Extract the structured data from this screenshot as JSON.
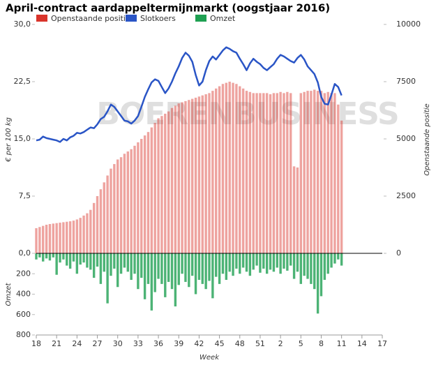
{
  "chart_data": {
    "type": "combo",
    "title": "April-contract aardappeltermijnmarkt (oogstjaar 2016)",
    "watermark": "BOERENBUSINESS",
    "ylabel": "€ per 100 kg",
    "y2label": "Openstaande positie",
    "y3label": "Omzet",
    "xlabel": "Week",
    "ylim": [
      0,
      30
    ],
    "yticks": [
      {
        "value": 0,
        "label": "0,0"
      },
      {
        "value": 7.5,
        "label": "7,5"
      },
      {
        "value": 15,
        "label": "15,0"
      },
      {
        "value": 22.5,
        "label": "22,5"
      },
      {
        "value": 30,
        "label": "30,0"
      }
    ],
    "y2lim": [
      0,
      10000
    ],
    "y2ticks": [
      0,
      2500,
      5000,
      7500,
      10000
    ],
    "y3lim": [
      0,
      800
    ],
    "y3ticks": [
      200,
      400,
      600,
      800
    ],
    "y3_inverted": true,
    "xlim": [
      18,
      69
    ],
    "xticks": [
      18,
      21,
      24,
      27,
      30,
      33,
      36,
      39,
      42,
      45,
      48,
      51,
      {
        "value": 54,
        "label": "2"
      },
      {
        "value": 57,
        "label": "5"
      },
      {
        "value": 60,
        "label": "8"
      },
      {
        "value": 63,
        "label": "11"
      },
      {
        "value": 66,
        "label": "14"
      },
      {
        "value": 69,
        "label": "17"
      }
    ],
    "x": [
      18,
      18.5,
      19,
      19.5,
      20,
      20.5,
      21,
      21.5,
      22,
      22.5,
      23,
      23.5,
      24,
      24.5,
      25,
      25.5,
      26,
      26.5,
      27,
      27.5,
      28,
      28.5,
      29,
      29.5,
      30,
      30.5,
      31,
      31.5,
      32,
      32.5,
      33,
      33.5,
      34,
      34.5,
      35,
      35.5,
      36,
      36.5,
      37,
      37.5,
      38,
      38.5,
      39,
      39.5,
      40,
      40.5,
      41,
      41.5,
      42,
      42.5,
      43,
      43.5,
      44,
      44.5,
      45,
      45.5,
      46,
      46.5,
      47,
      47.5,
      48,
      48.5,
      49,
      49.5,
      50,
      50.5,
      51,
      51.5,
      52,
      52.5,
      53,
      53.5,
      54,
      54.5,
      55,
      55.5,
      56,
      56.5,
      57,
      57.5,
      58,
      58.5,
      59,
      59.5,
      60,
      60.5,
      61,
      61.5,
      62,
      62.5,
      63
    ],
    "series": [
      {
        "name": "Openstaande positie",
        "type": "bar",
        "axis": "y2",
        "color": "#d9342b",
        "values": [
          1100,
          1150,
          1200,
          1250,
          1280,
          1300,
          1320,
          1340,
          1360,
          1380,
          1400,
          1430,
          1480,
          1550,
          1650,
          1750,
          1900,
          2200,
          2500,
          2800,
          3100,
          3400,
          3700,
          3900,
          4100,
          4200,
          4350,
          4450,
          4550,
          4700,
          4850,
          5000,
          5150,
          5300,
          5500,
          5700,
          5900,
          6000,
          6100,
          6200,
          6350,
          6450,
          6550,
          6600,
          6650,
          6700,
          6750,
          6800,
          6850,
          6900,
          6950,
          7000,
          7100,
          7200,
          7300,
          7400,
          7450,
          7500,
          7450,
          7400,
          7300,
          7200,
          7100,
          7050,
          7000,
          7000,
          7000,
          7000,
          7000,
          6950,
          7000,
          7000,
          7050,
          7000,
          7050,
          7000,
          3800,
          3750,
          7000,
          7050,
          7100,
          7100,
          7150,
          7100,
          7100,
          7000,
          7050,
          7000,
          7000,
          6500,
          5800
        ]
      },
      {
        "name": "Slotkoers",
        "type": "line",
        "axis": "y",
        "color": "#2a55c6",
        "values": [
          14.8,
          14.9,
          15.3,
          15.1,
          15.0,
          14.9,
          14.8,
          14.6,
          15.0,
          14.8,
          15.2,
          15.4,
          15.8,
          15.7,
          15.9,
          16.2,
          16.5,
          16.4,
          16.9,
          17.6,
          17.9,
          18.6,
          19.5,
          19.2,
          18.6,
          18.0,
          17.4,
          17.3,
          17.0,
          17.4,
          18.0,
          19.2,
          20.5,
          21.5,
          22.4,
          22.8,
          22.6,
          21.8,
          21.0,
          21.6,
          22.5,
          23.6,
          24.5,
          25.6,
          26.3,
          25.9,
          25.1,
          23.4,
          22.0,
          22.5,
          24.0,
          25.2,
          25.8,
          25.4,
          26.0,
          26.6,
          27.0,
          26.8,
          26.5,
          26.3,
          25.5,
          24.8,
          24.0,
          24.9,
          25.5,
          25.1,
          24.8,
          24.3,
          24.0,
          24.4,
          24.8,
          25.5,
          26.0,
          25.8,
          25.5,
          25.2,
          25.0,
          25.6,
          26.0,
          25.4,
          24.5,
          24.0,
          23.5,
          22.4,
          20.5,
          19.6,
          19.5,
          20.8,
          22.2,
          21.8,
          20.7
        ]
      },
      {
        "name": "Omzet",
        "type": "bar",
        "axis": "y3",
        "color": "#1fa052",
        "values": [
          60,
          40,
          80,
          50,
          70,
          40,
          210,
          90,
          60,
          120,
          150,
          80,
          200,
          110,
          90,
          140,
          160,
          240,
          130,
          300,
          180,
          490,
          220,
          150,
          330,
          200,
          140,
          180,
          260,
          200,
          350,
          240,
          450,
          300,
          560,
          380,
          250,
          300,
          430,
          280,
          350,
          520,
          310,
          200,
          280,
          330,
          220,
          400,
          260,
          300,
          350,
          270,
          440,
          230,
          300,
          200,
          260,
          180,
          220,
          150,
          200,
          140,
          180,
          220,
          160,
          120,
          190,
          150,
          200,
          160,
          180,
          140,
          200,
          150,
          170,
          120,
          250,
          180,
          300,
          220,
          250,
          300,
          350,
          590,
          420,
          260,
          200,
          140,
          100,
          60,
          120
        ]
      }
    ]
  }
}
